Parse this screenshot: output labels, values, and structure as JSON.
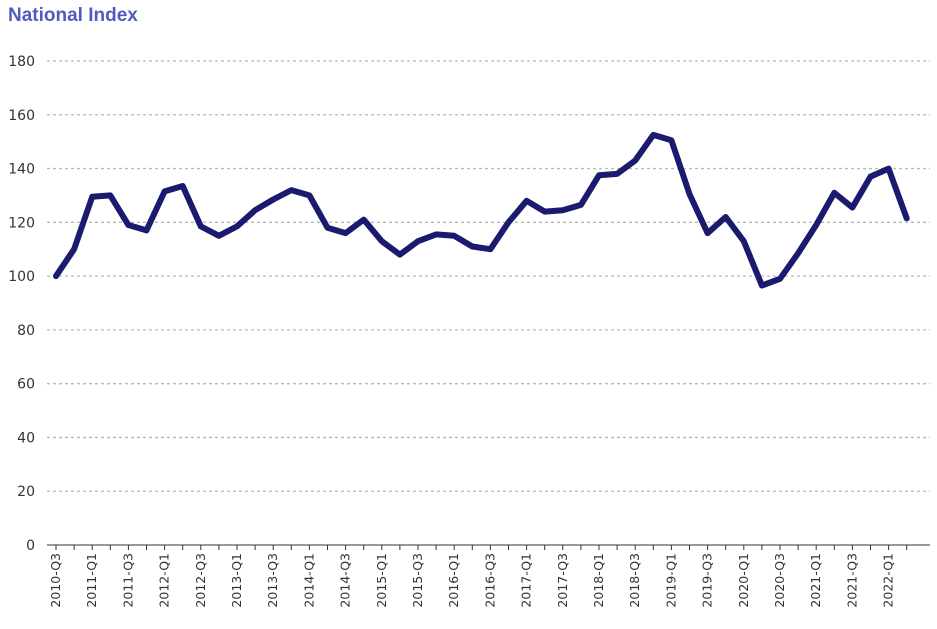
{
  "chart_data": {
    "type": "line",
    "title": "National Index",
    "xlabel": "",
    "ylabel": "",
    "ylim": [
      0,
      180
    ],
    "yticks": [
      0,
      20,
      40,
      60,
      80,
      100,
      120,
      140,
      160,
      180
    ],
    "grid": true,
    "legend": "none",
    "x": [
      "2010-Q3",
      "2010-Q4",
      "2011-Q1",
      "2011-Q2",
      "2011-Q3",
      "2011-Q4",
      "2012-Q1",
      "2012-Q2",
      "2012-Q3",
      "2012-Q4",
      "2013-Q1",
      "2013-Q2",
      "2013-Q3",
      "2013-Q4",
      "2014-Q1",
      "2014-Q2",
      "2014-Q3",
      "2014-Q4",
      "2015-Q1",
      "2015-Q2",
      "2015-Q3",
      "2015-Q4",
      "2016-Q1",
      "2016-Q2",
      "2016-Q3",
      "2016-Q4",
      "2017-Q1",
      "2017-Q2",
      "2017-Q3",
      "2017-Q4",
      "2018-Q1",
      "2018-Q2",
      "2018-Q3",
      "2018-Q4",
      "2019-Q1",
      "2019-Q2",
      "2019-Q3",
      "2019-Q4",
      "2020-Q1",
      "2020-Q2",
      "2020-Q3",
      "2020-Q4",
      "2021-Q1",
      "2021-Q2",
      "2021-Q3",
      "2021-Q4",
      "2022-Q1",
      "2022-Q2"
    ],
    "x_tick_labels": [
      "2010-Q3",
      "2011-Q1",
      "2011-Q3",
      "2012-Q1",
      "2012-Q3",
      "2013-Q1",
      "2013-Q3",
      "2014-Q1",
      "2014-Q3",
      "2015-Q1",
      "2015-Q3",
      "2016-Q1",
      "2016-Q3",
      "2017-Q1",
      "2017-Q3",
      "2018-Q1",
      "2018-Q3",
      "2019-Q1",
      "2019-Q3",
      "2020-Q1",
      "2020-Q3",
      "2021-Q1",
      "2021-Q3",
      "2022-Q1"
    ],
    "series": [
      {
        "name": "",
        "color": "#1a1a6e",
        "values": [
          100,
          110,
          129.5,
          130,
          119,
          117,
          131.5,
          133.5,
          118.5,
          115,
          118.5,
          124.5,
          128.5,
          132,
          130,
          118,
          116,
          121,
          113,
          108,
          113,
          115.5,
          115,
          111,
          110,
          120,
          128,
          124,
          124.5,
          126.5,
          137.5,
          138,
          143,
          152.5,
          150.5,
          130.5,
          116,
          122,
          113,
          96.5,
          99,
          108.5,
          119,
          131,
          125.5,
          137,
          140,
          121.5
        ]
      }
    ]
  },
  "colors": {
    "title": "#4f5bbf",
    "line": "#1a1a6e",
    "grid": "#b8b8b8",
    "axis": "#333333"
  }
}
